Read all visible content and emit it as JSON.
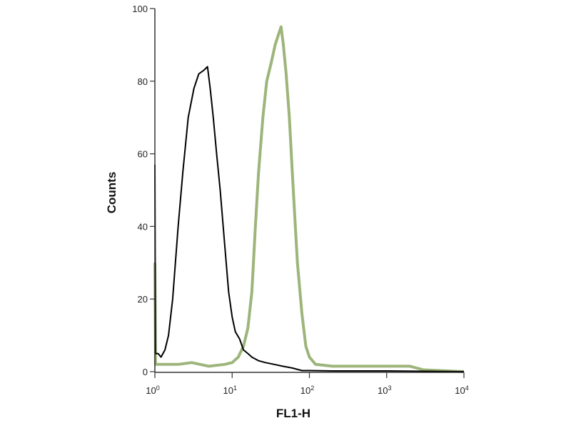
{
  "chart_data": {
    "type": "line",
    "title": "",
    "xlabel": "FL1-H",
    "ylabel": "Counts",
    "xscale": "log",
    "xlim": [
      1,
      10000
    ],
    "ylim": [
      0,
      100
    ],
    "grid": false,
    "x_ticks": [
      {
        "base": "10",
        "exp": "0",
        "value": 1
      },
      {
        "base": "10",
        "exp": "1",
        "value": 10
      },
      {
        "base": "10",
        "exp": "2",
        "value": 100
      },
      {
        "base": "10",
        "exp": "3",
        "value": 1000
      },
      {
        "base": "10",
        "exp": "4",
        "value": 10000
      }
    ],
    "y_ticks": [
      "0",
      "20",
      "40",
      "60",
      "80",
      "100"
    ],
    "series": [
      {
        "color": "#000000",
        "x": [
          1.0,
          1.02,
          1.1,
          1.2,
          1.35,
          1.5,
          1.7,
          2.0,
          2.3,
          2.7,
          3.2,
          3.7,
          4.3,
          4.8,
          5.2,
          5.7,
          6.3,
          7.0,
          8.0,
          9.0,
          10,
          11,
          12.5,
          14,
          16,
          18,
          22,
          27,
          35,
          45,
          60,
          80,
          100,
          200,
          1000,
          10000
        ],
        "y": [
          57,
          5,
          5,
          4,
          6,
          10,
          20,
          40,
          55,
          70,
          78,
          82,
          83,
          84,
          78,
          70,
          60,
          50,
          35,
          22,
          15,
          11,
          9,
          6,
          5,
          4,
          3,
          2.5,
          2,
          1.5,
          1,
          0.3,
          0.3,
          0.2,
          0.2,
          0
        ]
      },
      {
        "color": "#9db57a",
        "x": [
          1.0,
          1.02,
          2,
          3,
          5,
          8,
          10,
          12,
          14,
          16,
          18,
          20,
          22,
          25,
          28,
          32,
          36,
          40,
          43,
          46,
          50,
          55,
          60,
          65,
          70,
          80,
          90,
          100,
          120,
          200,
          500,
          1000,
          2000,
          3000,
          10000
        ],
        "y": [
          30,
          2,
          2,
          2.5,
          1.5,
          2,
          2.5,
          4,
          7,
          12,
          22,
          40,
          55,
          70,
          80,
          85,
          90,
          93,
          95,
          90,
          82,
          70,
          55,
          42,
          30,
          16,
          7,
          4,
          2,
          1.5,
          1.5,
          1.5,
          1.5,
          0.5,
          0
        ]
      }
    ]
  }
}
